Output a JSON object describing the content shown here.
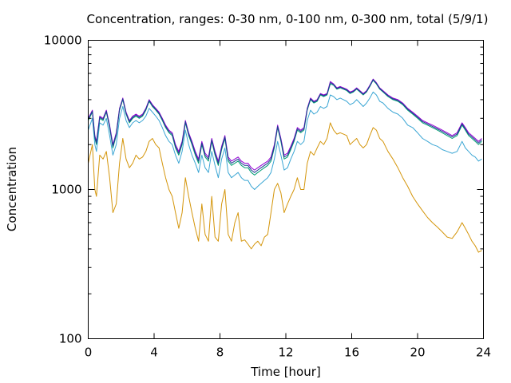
{
  "chart_data": {
    "type": "line",
    "title": "Concentration, ranges: 0-30 nm, 0-100 nm, 0-300 nm, total (5/9/1)",
    "xlabel": "Time [hour]",
    "ylabel": "Concentration",
    "xlim": [
      0,
      24
    ],
    "ylim": [
      100,
      10000
    ],
    "yscale": "log",
    "grid": false,
    "legend": "none",
    "xticks": [
      0,
      4,
      8,
      12,
      16,
      20,
      24
    ],
    "xtick_labels": [
      "0",
      "4",
      "8",
      "12",
      "16",
      "20",
      "24"
    ],
    "yticks": [
      100,
      1000,
      10000
    ],
    "ytick_labels": [
      "100",
      "1000",
      "10000"
    ],
    "series": [
      {
        "color": "#d4950a",
        "x": [
          0,
          0.25,
          0.4,
          0.5,
          0.7,
          0.9,
          1.1,
          1.3,
          1.5,
          1.7,
          1.9,
          2.1,
          2.3,
          2.5,
          2.7,
          2.9,
          3.1,
          3.3,
          3.5,
          3.7,
          3.9,
          4.1,
          4.3,
          4.5,
          4.7,
          4.9,
          5.1,
          5.3,
          5.5,
          5.7,
          5.9,
          6.1,
          6.3,
          6.5,
          6.7,
          6.9,
          7.1,
          7.3,
          7.5,
          7.7,
          7.9,
          8.1,
          8.3,
          8.5,
          8.7,
          8.9,
          9.1,
          9.3,
          9.5,
          9.7,
          9.9,
          10.1,
          10.3,
          10.5,
          10.7,
          10.9,
          11.1,
          11.3,
          11.5,
          11.7,
          11.9,
          12.1,
          12.3,
          12.5,
          12.7,
          12.9,
          13.1,
          13.3,
          13.5,
          13.7,
          13.9,
          14.1,
          14.3,
          14.5,
          14.7,
          14.9,
          15.1,
          15.3,
          15.5,
          15.7,
          15.9,
          16.1,
          16.3,
          16.5,
          16.7,
          16.9,
          17.1,
          17.3,
          17.5,
          17.7,
          17.9,
          18.2,
          18.5,
          18.8,
          19.1,
          19.4,
          19.7,
          20.0,
          20.3,
          20.6,
          20.9,
          21.2,
          21.5,
          21.8,
          22.1,
          22.4,
          22.7,
          22.9,
          23.1,
          23.3,
          23.5,
          23.7,
          23.9
        ],
        "values": [
          1500,
          2000,
          1000,
          900,
          1700,
          1600,
          1800,
          1200,
          700,
          800,
          1500,
          2200,
          1600,
          1400,
          1500,
          1700,
          1600,
          1650,
          1800,
          2100,
          2200,
          2000,
          1900,
          1500,
          1200,
          1000,
          900,
          700,
          550,
          700,
          1200,
          900,
          700,
          550,
          450,
          800,
          500,
          450,
          900,
          480,
          450,
          800,
          1000,
          500,
          450,
          600,
          700,
          450,
          460,
          430,
          400,
          430,
          450,
          420,
          480,
          500,
          700,
          1000,
          1100,
          950,
          700,
          800,
          900,
          1000,
          1200,
          1000,
          1000,
          1500,
          1800,
          1700,
          1900,
          2100,
          2000,
          2200,
          2800,
          2500,
          2350,
          2400,
          2350,
          2300,
          2000,
          2100,
          2200,
          2000,
          1900,
          2000,
          2300,
          2600,
          2500,
          2200,
          2100,
          1800,
          1600,
          1400,
          1200,
          1050,
          900,
          800,
          720,
          650,
          600,
          560,
          520,
          480,
          470,
          520,
          600,
          550,
          500,
          450,
          420,
          380,
          390
        ]
      },
      {
        "color": "#3ba6d4",
        "x": [
          0,
          0.25,
          0.4,
          0.5,
          0.7,
          0.9,
          1.1,
          1.3,
          1.5,
          1.7,
          1.9,
          2.1,
          2.3,
          2.5,
          2.7,
          2.9,
          3.1,
          3.3,
          3.5,
          3.7,
          3.9,
          4.1,
          4.3,
          4.5,
          4.7,
          4.9,
          5.1,
          5.3,
          5.5,
          5.7,
          5.9,
          6.1,
          6.3,
          6.5,
          6.7,
          6.9,
          7.1,
          7.3,
          7.5,
          7.7,
          7.9,
          8.1,
          8.3,
          8.5,
          8.7,
          8.9,
          9.1,
          9.3,
          9.5,
          9.7,
          9.9,
          10.1,
          10.3,
          10.5,
          10.7,
          10.9,
          11.1,
          11.3,
          11.5,
          11.7,
          11.9,
          12.1,
          12.3,
          12.5,
          12.7,
          12.9,
          13.1,
          13.3,
          13.5,
          13.7,
          13.9,
          14.1,
          14.3,
          14.5,
          14.7,
          14.9,
          15.1,
          15.3,
          15.5,
          15.7,
          15.9,
          16.1,
          16.3,
          16.5,
          16.7,
          16.9,
          17.1,
          17.3,
          17.5,
          17.7,
          17.9,
          18.2,
          18.5,
          18.8,
          19.1,
          19.4,
          19.7,
          20.0,
          20.3,
          20.6,
          20.9,
          21.2,
          21.5,
          21.8,
          22.1,
          22.4,
          22.7,
          22.9,
          23.1,
          23.3,
          23.5,
          23.7,
          23.9
        ],
        "values": [
          2500,
          3000,
          2000,
          1800,
          2800,
          2700,
          3000,
          2300,
          1700,
          2000,
          3000,
          3600,
          2900,
          2600,
          2800,
          2900,
          2800,
          2900,
          3100,
          3500,
          3300,
          3100,
          2900,
          2600,
          2300,
          2100,
          2000,
          1700,
          1500,
          1800,
          2500,
          2000,
          1700,
          1500,
          1300,
          1700,
          1400,
          1300,
          1800,
          1450,
          1200,
          1600,
          1900,
          1300,
          1200,
          1250,
          1300,
          1200,
          1150,
          1150,
          1050,
          1000,
          1050,
          1100,
          1150,
          1200,
          1300,
          1600,
          2100,
          1700,
          1350,
          1400,
          1600,
          1800,
          2100,
          2000,
          2100,
          2900,
          3400,
          3200,
          3300,
          3600,
          3500,
          3600,
          4300,
          4200,
          4000,
          4100,
          4000,
          3900,
          3700,
          3800,
          4000,
          3800,
          3600,
          3800,
          4100,
          4500,
          4300,
          3900,
          3800,
          3500,
          3300,
          3200,
          3000,
          2700,
          2600,
          2400,
          2200,
          2100,
          2000,
          1950,
          1850,
          1800,
          1750,
          1800,
          2100,
          1900,
          1800,
          1700,
          1650,
          1550,
          1600
        ]
      },
      {
        "color": "#009e73",
        "x": [
          0,
          0.25,
          0.4,
          0.5,
          0.7,
          0.9,
          1.1,
          1.3,
          1.5,
          1.7,
          1.9,
          2.1,
          2.3,
          2.5,
          2.7,
          2.9,
          3.1,
          3.3,
          3.5,
          3.7,
          3.9,
          4.1,
          4.3,
          4.5,
          4.7,
          4.9,
          5.1,
          5.3,
          5.5,
          5.7,
          5.9,
          6.1,
          6.3,
          6.5,
          6.7,
          6.9,
          7.1,
          7.3,
          7.5,
          7.7,
          7.9,
          8.1,
          8.3,
          8.5,
          8.7,
          8.9,
          9.1,
          9.3,
          9.5,
          9.7,
          9.9,
          10.1,
          10.3,
          10.5,
          10.7,
          10.9,
          11.1,
          11.3,
          11.5,
          11.7,
          11.9,
          12.1,
          12.3,
          12.5,
          12.7,
          12.9,
          13.1,
          13.3,
          13.5,
          13.7,
          13.9,
          14.1,
          14.3,
          14.5,
          14.7,
          14.9,
          15.1,
          15.3,
          15.5,
          15.7,
          15.9,
          16.1,
          16.3,
          16.5,
          16.7,
          16.9,
          17.1,
          17.3,
          17.5,
          17.7,
          17.9,
          18.2,
          18.5,
          18.8,
          19.1,
          19.4,
          19.7,
          20.0,
          20.3,
          20.6,
          20.9,
          21.2,
          21.5,
          21.8,
          22.1,
          22.4,
          22.7,
          22.9,
          23.1,
          23.3,
          23.5,
          23.7,
          23.9
        ],
        "values": [
          2900,
          3300,
          2200,
          2000,
          3000,
          2900,
          3300,
          2600,
          1900,
          2300,
          3400,
          4000,
          3200,
          2800,
          3000,
          3100,
          3000,
          3100,
          3400,
          3900,
          3600,
          3400,
          3200,
          2900,
          2600,
          2400,
          2300,
          1900,
          1700,
          2000,
          2800,
          2300,
          2000,
          1700,
          1500,
          2000,
          1650,
          1550,
          2100,
          1700,
          1450,
          1850,
          2200,
          1550,
          1450,
          1500,
          1550,
          1450,
          1400,
          1400,
          1300,
          1250,
          1300,
          1350,
          1400,
          1450,
          1550,
          1900,
          2600,
          2100,
          1600,
          1650,
          1850,
          2100,
          2500,
          2400,
          2500,
          3400,
          4000,
          3800,
          3900,
          4300,
          4200,
          4300,
          5100,
          5000,
          4700,
          4800,
          4700,
          4600,
          4400,
          4500,
          4700,
          4500,
          4300,
          4500,
          4900,
          5400,
          5100,
          4700,
          4500,
          4200,
          4000,
          3900,
          3700,
          3400,
          3200,
          3000,
          2800,
          2700,
          2600,
          2500,
          2400,
          2300,
          2200,
          2300,
          2700,
          2500,
          2300,
          2200,
          2100,
          2000,
          2100
        ]
      },
      {
        "color": "#9400d3",
        "x": [
          0,
          0.25,
          0.4,
          0.5,
          0.7,
          0.9,
          1.1,
          1.3,
          1.5,
          1.7,
          1.9,
          2.1,
          2.3,
          2.5,
          2.7,
          2.9,
          3.1,
          3.3,
          3.5,
          3.7,
          3.9,
          4.1,
          4.3,
          4.5,
          4.7,
          4.9,
          5.1,
          5.3,
          5.5,
          5.7,
          5.9,
          6.1,
          6.3,
          6.5,
          6.7,
          6.9,
          7.1,
          7.3,
          7.5,
          7.7,
          7.9,
          8.1,
          8.3,
          8.5,
          8.7,
          8.9,
          9.1,
          9.3,
          9.5,
          9.7,
          9.9,
          10.1,
          10.3,
          10.5,
          10.7,
          10.9,
          11.1,
          11.3,
          11.5,
          11.7,
          11.9,
          12.1,
          12.3,
          12.5,
          12.7,
          12.9,
          13.1,
          13.3,
          13.5,
          13.7,
          13.9,
          14.1,
          14.3,
          14.5,
          14.7,
          14.9,
          15.1,
          15.3,
          15.5,
          15.7,
          15.9,
          16.1,
          16.3,
          16.5,
          16.7,
          16.9,
          17.1,
          17.3,
          17.5,
          17.7,
          17.9,
          18.2,
          18.5,
          18.8,
          19.1,
          19.4,
          19.7,
          20.0,
          20.3,
          20.6,
          20.9,
          21.2,
          21.5,
          21.8,
          22.1,
          22.4,
          22.7,
          22.9,
          23.1,
          23.3,
          23.5,
          23.7,
          23.9
        ],
        "values": [
          3000,
          3400,
          2300,
          2100,
          3100,
          3000,
          3400,
          2700,
          2000,
          2400,
          3500,
          4100,
          3300,
          2900,
          3100,
          3200,
          3100,
          3200,
          3500,
          4000,
          3700,
          3500,
          3300,
          3000,
          2700,
          2500,
          2400,
          2000,
          1800,
          2100,
          2900,
          2400,
          2100,
          1800,
          1600,
          2100,
          1750,
          1650,
          2200,
          1800,
          1550,
          1950,
          2300,
          1650,
          1550,
          1600,
          1650,
          1550,
          1500,
          1500,
          1400,
          1350,
          1400,
          1450,
          1500,
          1550,
          1650,
          2000,
          2700,
          2200,
          1700,
          1750,
          1950,
          2200,
          2600,
          2500,
          2600,
          3500,
          4100,
          3900,
          4000,
          4400,
          4300,
          4400,
          5300,
          5100,
          4800,
          4900,
          4800,
          4700,
          4500,
          4600,
          4800,
          4600,
          4400,
          4600,
          5000,
          5500,
          5200,
          4800,
          4600,
          4300,
          4100,
          4000,
          3800,
          3500,
          3300,
          3100,
          2900,
          2800,
          2700,
          2600,
          2500,
          2400,
          2300,
          2400,
          2800,
          2600,
          2400,
          2300,
          2200,
          2100,
          2200
        ]
      },
      {
        "color": "#1f3a93",
        "x": [
          0,
          0.25,
          0.4,
          0.5,
          0.7,
          0.9,
          1.1,
          1.3,
          1.5,
          1.7,
          1.9,
          2.1,
          2.3,
          2.5,
          2.7,
          2.9,
          3.1,
          3.3,
          3.5,
          3.7,
          3.9,
          4.1,
          4.3,
          4.5,
          4.7,
          4.9,
          5.1,
          5.3,
          5.5,
          5.7,
          5.9,
          6.1,
          6.3,
          6.5,
          6.7,
          6.9,
          7.1,
          7.3,
          7.5,
          7.7,
          7.9,
          8.1,
          8.3,
          8.5,
          8.7,
          8.9,
          9.1,
          9.3,
          9.5,
          9.7,
          9.9,
          10.1,
          10.3,
          10.5,
          10.7,
          10.9,
          11.1,
          11.3,
          11.5,
          11.7,
          11.9,
          12.1,
          12.3,
          12.5,
          12.7,
          12.9,
          13.1,
          13.3,
          13.5,
          13.7,
          13.9,
          14.1,
          14.3,
          14.5,
          14.7,
          14.9,
          15.1,
          15.3,
          15.5,
          15.7,
          15.9,
          16.1,
          16.3,
          16.5,
          16.7,
          16.9,
          17.1,
          17.3,
          17.5,
          17.7,
          17.9,
          18.2,
          18.5,
          18.8,
          19.1,
          19.4,
          19.7,
          20.0,
          20.3,
          20.6,
          20.9,
          21.2,
          21.5,
          21.8,
          22.1,
          22.4,
          22.7,
          22.9,
          23.1,
          23.3,
          23.5,
          23.7,
          23.9
        ],
        "values": [
          2950,
          3350,
          2250,
          2050,
          3050,
          2950,
          3350,
          2650,
          1950,
          2350,
          3450,
          4050,
          3250,
          2850,
          3050,
          3150,
          3050,
          3150,
          3450,
          3950,
          3650,
          3450,
          3250,
          2950,
          2650,
          2450,
          2350,
          1950,
          1750,
          2050,
          2850,
          2350,
          2050,
          1750,
          1550,
          2050,
          1700,
          1600,
          2150,
          1750,
          1500,
          1900,
          2250,
          1600,
          1500,
          1550,
          1600,
          1500,
          1450,
          1450,
          1350,
          1300,
          1350,
          1400,
          1450,
          1500,
          1600,
          1950,
          2650,
          2150,
          1650,
          1700,
          1900,
          2150,
          2550,
          2450,
          2550,
          3450,
          4050,
          3850,
          3950,
          4350,
          4250,
          4350,
          5200,
          5050,
          4750,
          4850,
          4750,
          4650,
          4450,
          4550,
          4750,
          4550,
          4350,
          4550,
          4950,
          5450,
          5150,
          4750,
          4550,
          4250,
          4050,
          3950,
          3750,
          3450,
          3250,
          3050,
          2850,
          2750,
          2650,
          2550,
          2450,
          2350,
          2250,
          2350,
          2750,
          2550,
          2350,
          2250,
          2150,
          2050,
          2150
        ]
      }
    ]
  }
}
